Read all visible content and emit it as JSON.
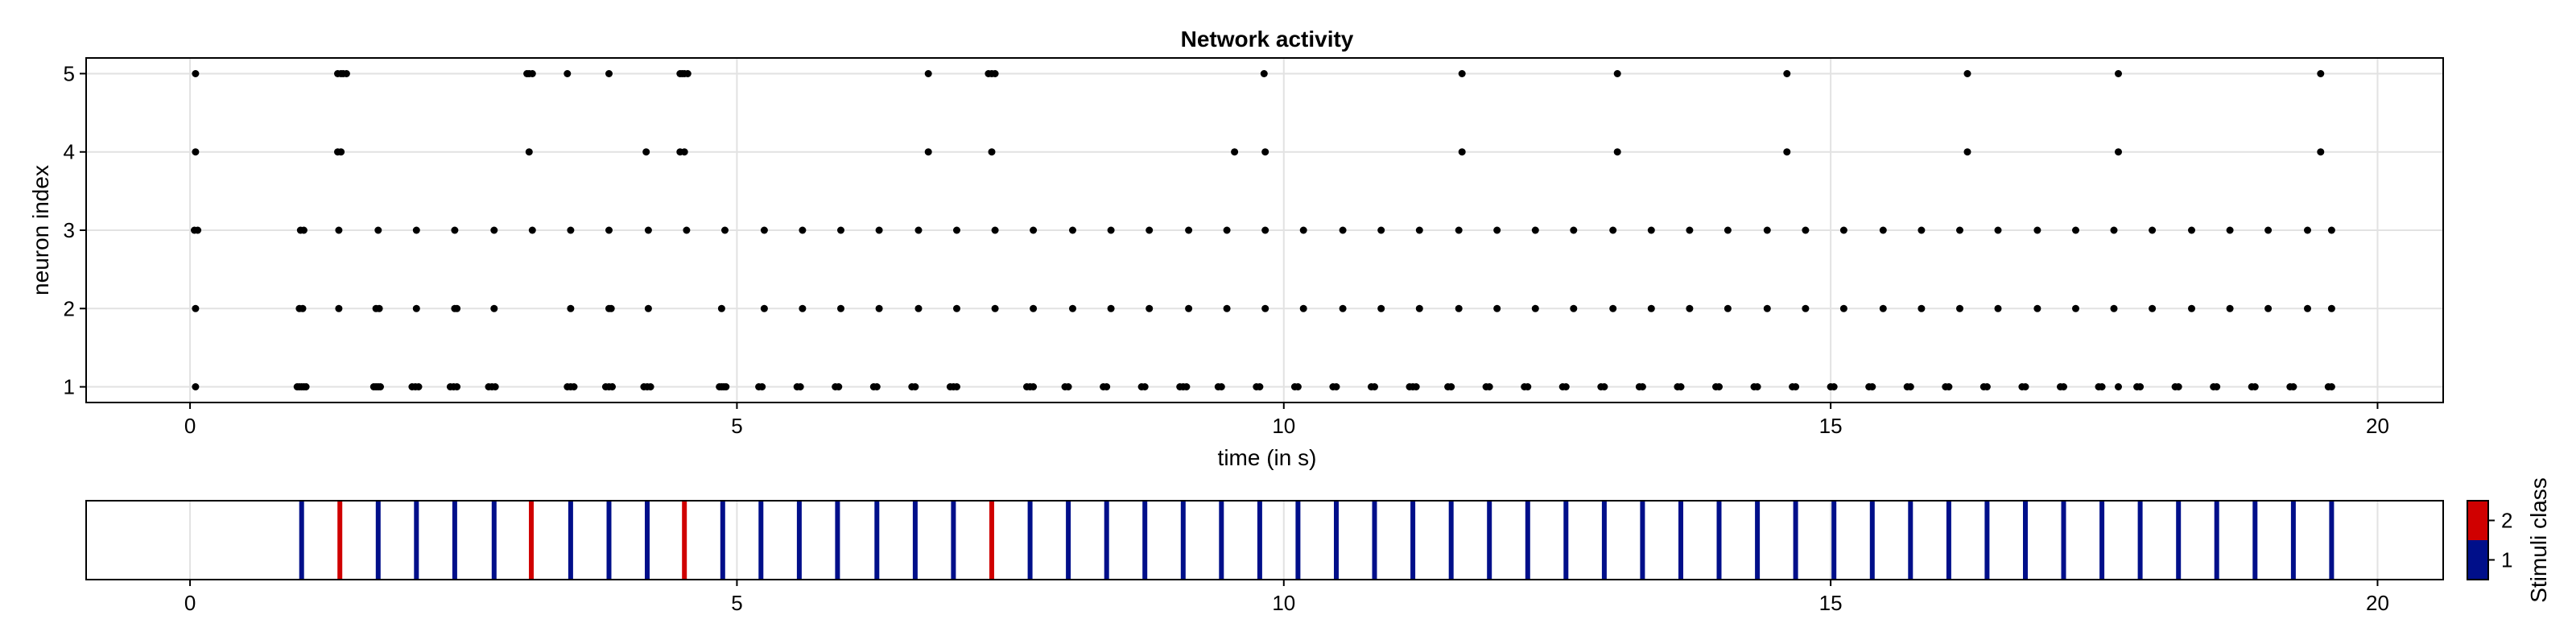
{
  "chart_data": [
    {
      "type": "scatter",
      "title": "Network activity",
      "xlabel": "time (in s)",
      "ylabel": "neuron index",
      "xlim": [
        -0.95,
        20.6
      ],
      "ylim": [
        0.8,
        5.2
      ],
      "xticks": [
        0,
        5,
        10,
        15,
        20
      ],
      "yticks": [
        1,
        2,
        3,
        4,
        5
      ],
      "grid": true,
      "marker_color": "#000000",
      "rows": [
        {
          "neuron": 5,
          "times": [
            0.05,
            1.35,
            1.38,
            1.4,
            1.43,
            3.08,
            3.1,
            3.13,
            3.45,
            3.83,
            4.48,
            4.5,
            4.52,
            4.55,
            6.75,
            7.3,
            7.33,
            7.36,
            9.82,
            11.63,
            13.05,
            14.6,
            16.25,
            17.63,
            19.48
          ]
        },
        {
          "neuron": 4,
          "times": [
            0.05,
            1.35,
            1.38,
            3.1,
            4.17,
            4.48,
            4.52,
            6.75,
            7.33,
            9.55,
            9.83,
            11.63,
            13.05,
            14.6,
            16.25,
            17.63,
            19.48
          ]
        },
        {
          "neuron": 3,
          "times": [
            0.04,
            0.07,
            1.01,
            1.04,
            1.36,
            1.72,
            2.07,
            2.42,
            2.78,
            3.13,
            3.48,
            3.83,
            4.19,
            4.54,
            4.89,
            5.25,
            5.6,
            5.95,
            6.3,
            6.66,
            7.01,
            7.36,
            7.71,
            8.07,
            8.42,
            8.77,
            9.13,
            9.48,
            9.83,
            10.18,
            10.54,
            10.89,
            11.24,
            11.6,
            11.95,
            12.3,
            12.65,
            13.01,
            13.36,
            13.71,
            14.06,
            14.42,
            14.77,
            15.12,
            15.48,
            15.83,
            16.18,
            16.53,
            16.89,
            17.24,
            17.59,
            17.94,
            18.3,
            18.65,
            19.0,
            19.36,
            19.58
          ]
        },
        {
          "neuron": 2,
          "times": [
            0.05,
            1.0,
            1.03,
            1.36,
            1.7,
            1.73,
            2.07,
            2.42,
            2.44,
            2.78,
            3.48,
            3.83,
            3.85,
            4.19,
            4.86,
            5.25,
            5.6,
            5.95,
            6.3,
            6.66,
            7.01,
            7.36,
            7.71,
            8.07,
            8.42,
            8.77,
            9.13,
            9.48,
            9.83,
            10.18,
            10.54,
            10.89,
            11.24,
            11.6,
            11.95,
            12.3,
            12.65,
            13.01,
            13.36,
            13.71,
            14.06,
            14.42,
            14.77,
            15.12,
            15.48,
            15.83,
            16.18,
            16.53,
            16.89,
            17.24,
            17.59,
            17.94,
            18.3,
            18.65,
            19.0,
            19.36,
            19.58
          ]
        },
        {
          "neuron": 1,
          "times": [
            0.05,
            0.98,
            1.0,
            1.02,
            1.04,
            1.06,
            1.68,
            1.7,
            1.72,
            1.74,
            2.03,
            2.06,
            2.09,
            2.38,
            2.41,
            2.44,
            2.73,
            2.76,
            2.79,
            3.45,
            3.48,
            3.51,
            3.8,
            3.83,
            3.86,
            4.15,
            4.18,
            4.21,
            4.84,
            4.86,
            4.88,
            4.9,
            5.2,
            5.23,
            5.55,
            5.58,
            5.9,
            5.93,
            6.25,
            6.28,
            6.6,
            6.63,
            6.95,
            6.98,
            7.01,
            7.65,
            7.68,
            7.71,
            8.0,
            8.03,
            8.35,
            8.38,
            8.7,
            8.73,
            9.05,
            9.08,
            9.11,
            9.4,
            9.43,
            9.75,
            9.78,
            10.1,
            10.13,
            10.45,
            10.48,
            10.8,
            10.83,
            11.15,
            11.18,
            11.21,
            11.5,
            11.53,
            11.85,
            11.88,
            12.2,
            12.23,
            12.55,
            12.58,
            12.9,
            12.93,
            13.25,
            13.28,
            13.6,
            13.63,
            13.95,
            13.98,
            14.3,
            14.33,
            14.65,
            14.68,
            15.0,
            15.03,
            15.35,
            15.38,
            15.7,
            15.73,
            16.05,
            16.08,
            16.4,
            16.43,
            16.75,
            16.78,
            17.1,
            17.13,
            17.45,
            17.48,
            17.63,
            17.8,
            17.83,
            18.15,
            18.18,
            18.5,
            18.53,
            18.85,
            18.88,
            19.2,
            19.23,
            19.55,
            19.58
          ]
        }
      ]
    },
    {
      "type": "heatmap",
      "xlim": [
        -0.95,
        20.6
      ],
      "xticks": [
        0,
        5,
        10,
        15,
        20
      ],
      "events": [
        {
          "t": 1.02,
          "class": 1
        },
        {
          "t": 1.37,
          "class": 2
        },
        {
          "t": 1.72,
          "class": 1
        },
        {
          "t": 2.07,
          "class": 1
        },
        {
          "t": 2.42,
          "class": 1
        },
        {
          "t": 2.78,
          "class": 1
        },
        {
          "t": 3.12,
          "class": 2
        },
        {
          "t": 3.48,
          "class": 1
        },
        {
          "t": 3.83,
          "class": 1
        },
        {
          "t": 4.18,
          "class": 1
        },
        {
          "t": 4.52,
          "class": 2
        },
        {
          "t": 4.87,
          "class": 1
        },
        {
          "t": 5.22,
          "class": 1
        },
        {
          "t": 5.57,
          "class": 1
        },
        {
          "t": 5.92,
          "class": 1
        },
        {
          "t": 6.28,
          "class": 1
        },
        {
          "t": 6.63,
          "class": 1
        },
        {
          "t": 6.98,
          "class": 1
        },
        {
          "t": 7.33,
          "class": 2
        },
        {
          "t": 7.68,
          "class": 1
        },
        {
          "t": 8.03,
          "class": 1
        },
        {
          "t": 8.38,
          "class": 1
        },
        {
          "t": 8.73,
          "class": 1
        },
        {
          "t": 9.08,
          "class": 1
        },
        {
          "t": 9.43,
          "class": 1
        },
        {
          "t": 9.78,
          "class": 1
        },
        {
          "t": 10.13,
          "class": 1
        },
        {
          "t": 10.48,
          "class": 1
        },
        {
          "t": 10.83,
          "class": 1
        },
        {
          "t": 11.18,
          "class": 1
        },
        {
          "t": 11.53,
          "class": 1
        },
        {
          "t": 11.88,
          "class": 1
        },
        {
          "t": 12.23,
          "class": 1
        },
        {
          "t": 12.58,
          "class": 1
        },
        {
          "t": 12.93,
          "class": 1
        },
        {
          "t": 13.28,
          "class": 1
        },
        {
          "t": 13.63,
          "class": 1
        },
        {
          "t": 13.98,
          "class": 1
        },
        {
          "t": 14.33,
          "class": 1
        },
        {
          "t": 14.68,
          "class": 1
        },
        {
          "t": 15.03,
          "class": 1
        },
        {
          "t": 15.38,
          "class": 1
        },
        {
          "t": 15.73,
          "class": 1
        },
        {
          "t": 16.08,
          "class": 1
        },
        {
          "t": 16.43,
          "class": 1
        },
        {
          "t": 16.78,
          "class": 1
        },
        {
          "t": 17.13,
          "class": 1
        },
        {
          "t": 17.48,
          "class": 1
        },
        {
          "t": 17.83,
          "class": 1
        },
        {
          "t": 18.18,
          "class": 1
        },
        {
          "t": 18.53,
          "class": 1
        },
        {
          "t": 18.88,
          "class": 1
        },
        {
          "t": 19.23,
          "class": 1
        },
        {
          "t": 19.58,
          "class": 1
        }
      ],
      "colorbar": {
        "label": "Stimuli class",
        "classes": [
          {
            "value": 1,
            "label": "1",
            "color": "#000f8a"
          },
          {
            "value": 2,
            "label": "2",
            "color": "#d00000"
          }
        ]
      }
    }
  ]
}
